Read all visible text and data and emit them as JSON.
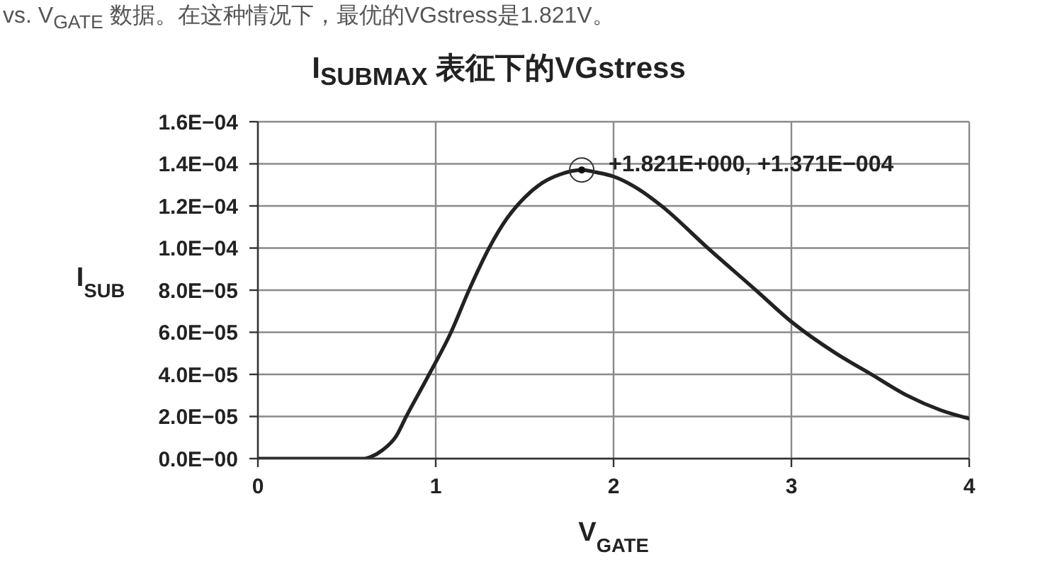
{
  "chart_data": {
    "type": "line",
    "title": "I$_{SUBMAX}$ 表征下的VGstress",
    "xlabel": "V$_{GATE}$",
    "ylabel": "I$_{SUB}$",
    "annotations": [
      "vs. V$_{GATE}$ 数据。在这种情况下，最优的VGstress是1.821V。",
      {
        "text": "+1.821E+000, +1.371E−004",
        "x": 1.821,
        "y": 0.0001371
      }
    ],
    "x": [
      0,
      0.3,
      0.6,
      0.64,
      0.7,
      0.78,
      0.834,
      0.95,
      1.086,
      1.187,
      1.3,
      1.4,
      1.5,
      1.6,
      1.7,
      1.821,
      1.9,
      2.0,
      2.14,
      2.27,
      2.53,
      2.8,
      3.0,
      3.25,
      3.45,
      3.65,
      3.84,
      4.0
    ],
    "values": [
      0,
      0,
      0,
      1e-06,
      4e-06,
      1.1e-05,
      2e-05,
      3.8e-05,
      6e-05,
      8e-05,
      0.0001,
      0.000114,
      0.000124,
      0.000131,
      0.000135,
      0.0001371,
      0.000136,
      0.000134,
      0.000128,
      0.00012,
      0.0001,
      8e-05,
      6.5e-05,
      5e-05,
      4e-05,
      3e-05,
      2.3e-05,
      1.9e-05
    ],
    "color": "#222222",
    "marker": "none",
    "line_style": "solid",
    "xlim": [
      0,
      4
    ],
    "xticks": [
      0,
      1,
      2,
      3,
      4
    ],
    "ylim": [
      0,
      0.00016
    ],
    "yticks": [
      {
        "value": 0,
        "label": "0.0E−00"
      },
      {
        "value": 2e-05,
        "label": "2.0E−05"
      },
      {
        "value": 4e-05,
        "label": "4.0E−05"
      },
      {
        "value": 6e-05,
        "label": "6.0E−05"
      },
      {
        "value": 8e-05,
        "label": "8.0E−05"
      },
      {
        "value": 0.0001,
        "label": "1.0E−04"
      },
      {
        "value": 0.00012,
        "label": "1.2E−04"
      },
      {
        "value": 0.00014,
        "label": "1.4E−04"
      },
      {
        "value": 0.00016,
        "label": "1.6E−04"
      }
    ],
    "grid": true
  }
}
